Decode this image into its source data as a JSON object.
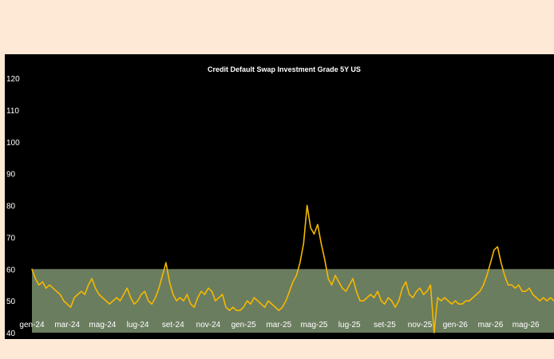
{
  "chart_data": {
    "type": "line",
    "title": "Credit Default Swap Investment Grade 5Y US",
    "xlabel": "",
    "ylabel": "",
    "ylim": [
      40,
      120
    ],
    "y_ticks": [
      40,
      50,
      60,
      70,
      80,
      90,
      100,
      110,
      120
    ],
    "x_tick_labels": [
      "gen-24",
      "mar-24",
      "mag-24",
      "lug-24",
      "set-24",
      "nov-24",
      "gen-25",
      "mar-25",
      "mag-25",
      "lug-25",
      "set-25",
      "nov-25",
      "gen-26",
      "mar-26",
      "mag-26"
    ],
    "grid": false,
    "legend": "none",
    "shaded_band": {
      "ymin": 40,
      "ymax": 60,
      "color": "#6b7d5f"
    },
    "line_color": "#f5b800",
    "series": [
      {
        "x": [
          0,
          0.2,
          0.4,
          0.6,
          0.8,
          1.0,
          1.2,
          1.4,
          1.6,
          1.8,
          2.0,
          2.2,
          2.4,
          2.6,
          2.8,
          3.0,
          3.2,
          3.4,
          3.6,
          3.8,
          4.0,
          4.2,
          4.4,
          4.6,
          4.8,
          5.0,
          5.2,
          5.4,
          5.6,
          5.8,
          6.0,
          6.2,
          6.4,
          6.6,
          6.8,
          7.0,
          7.2,
          7.4,
          7.6,
          7.8,
          8.0,
          8.2,
          8.4,
          8.6,
          8.8,
          9.0,
          9.2,
          9.4,
          9.6,
          9.8,
          10.0,
          10.2,
          10.4,
          10.6,
          10.8,
          11.0,
          11.2,
          11.4,
          11.6,
          11.8,
          12.0,
          12.2,
          12.4,
          12.6,
          12.8,
          13.0,
          13.2,
          13.4,
          13.6,
          13.8,
          14.0,
          14.2,
          14.4,
          14.6,
          14.8,
          15.0,
          15.2,
          15.4,
          15.6,
          15.8,
          16.0,
          16.2,
          16.4,
          16.6,
          16.8,
          17.0,
          17.2,
          17.4,
          17.6,
          17.8,
          18.0,
          18.2,
          18.4,
          18.6,
          18.8,
          19.0,
          19.2,
          19.4,
          19.6,
          19.8,
          20.0,
          20.2,
          20.4,
          20.6,
          20.8,
          21.0,
          21.2,
          21.4,
          21.6,
          21.8,
          22.0,
          22.2,
          22.4,
          22.6,
          22.8,
          23.0,
          23.2,
          23.4,
          23.6,
          23.8,
          24.0,
          24.2,
          24.4,
          24.6,
          24.8,
          25.0,
          25.2,
          25.4,
          25.6,
          25.8,
          26.0,
          26.2,
          26.4,
          26.6,
          26.8,
          27.0,
          27.2,
          27.4,
          27.6,
          27.8,
          28.0,
          28.2,
          28.4,
          28.6,
          28.8,
          29.0,
          29.2,
          29.4,
          29.6
        ],
        "values": [
          60,
          57,
          55,
          56,
          54,
          55,
          54,
          53,
          52,
          50,
          49,
          48,
          51,
          52,
          53,
          52,
          55,
          57,
          54,
          52,
          51,
          50,
          49,
          50,
          51,
          50,
          52,
          54,
          51,
          49,
          50,
          52,
          53,
          50,
          49,
          51,
          54,
          58,
          62,
          56,
          52,
          50,
          51,
          50,
          52,
          49,
          48,
          51,
          53,
          52,
          54,
          53,
          50,
          51,
          52,
          48,
          47,
          48,
          47,
          47,
          48,
          50,
          49,
          51,
          50,
          49,
          48,
          50,
          49,
          48,
          47,
          48,
          50,
          53,
          56,
          58,
          62,
          68,
          80,
          73,
          71,
          74,
          68,
          63,
          57,
          55,
          58,
          56,
          54,
          53,
          55,
          57,
          53,
          50,
          50,
          51,
          52,
          51,
          53,
          50,
          49,
          51,
          50,
          48,
          50,
          54,
          56,
          52,
          51,
          53,
          54,
          52,
          53,
          55,
          40,
          51,
          50,
          51,
          50,
          49,
          50,
          49,
          49,
          50,
          50,
          51,
          52,
          53,
          55,
          58,
          62,
          66,
          67,
          62,
          58,
          55,
          55,
          54,
          55,
          53,
          53,
          54,
          52,
          51,
          50,
          51,
          50,
          51,
          50
        ]
      }
    ]
  }
}
